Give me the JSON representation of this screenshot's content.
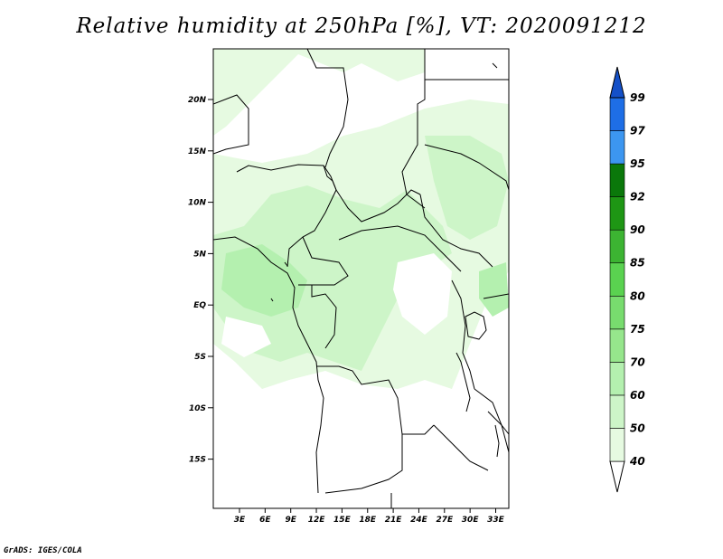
{
  "title": "Relative humidity at 250hPa [%], VT: 2020091212",
  "credit": "GrADS: IGES/COLA",
  "map": {
    "lat_labels": [
      "20N",
      "15N",
      "10N",
      "5N",
      "EQ",
      "5S",
      "10S",
      "15S"
    ],
    "lon_labels": [
      "3E",
      "6E",
      "9E",
      "12E",
      "15E",
      "18E",
      "21E",
      "24E",
      "27E",
      "30E",
      "33E"
    ]
  },
  "colorbar": {
    "levels": [
      "40",
      "50",
      "60",
      "70",
      "75",
      "80",
      "85",
      "90",
      "92",
      "95",
      "97",
      "99"
    ],
    "colors": [
      "#ffffff",
      "#e6fae1",
      "#cdf5c8",
      "#b4f0af",
      "#96e68c",
      "#78dc6e",
      "#5ad250",
      "#3cb432",
      "#1e9614",
      "#0a780a",
      "#3c96f0",
      "#1e6ee6",
      "#1450c8"
    ]
  },
  "fill_colors": {
    "light": "#e6fae1",
    "mid": "#cdf5c8",
    "strong": "#b4f0af"
  },
  "border_color": "#000000"
}
